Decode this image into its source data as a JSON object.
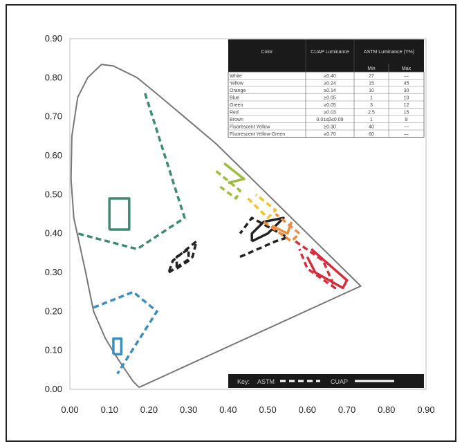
{
  "chart_data": {
    "type": "scatter",
    "title": "",
    "xlabel": "",
    "ylabel": "",
    "xlim": [
      0.0,
      0.9
    ],
    "ylim": [
      0.0,
      0.9
    ],
    "grid": false,
    "x_ticks": [
      "0.00",
      "0.10",
      "0.20",
      "0.30",
      "0.40",
      "0.50",
      "0.60",
      "0.70",
      "0.80",
      "0.90"
    ],
    "y_ticks": [
      "0.00",
      "0.10",
      "0.20",
      "0.30",
      "0.40",
      "0.50",
      "0.60",
      "0.70",
      "0.80",
      "0.90"
    ],
    "locus": [
      [
        0.175,
        0.005
      ],
      [
        0.16,
        0.02
      ],
      [
        0.14,
        0.05
      ],
      [
        0.12,
        0.08
      ],
      [
        0.09,
        0.13
      ],
      [
        0.06,
        0.2
      ],
      [
        0.04,
        0.3
      ],
      [
        0.01,
        0.44
      ],
      [
        0.003,
        0.54
      ],
      [
        0.005,
        0.65
      ],
      [
        0.02,
        0.75
      ],
      [
        0.045,
        0.8
      ],
      [
        0.08,
        0.834
      ],
      [
        0.11,
        0.83
      ],
      [
        0.17,
        0.8
      ],
      [
        0.23,
        0.75
      ],
      [
        0.3,
        0.69
      ],
      [
        0.37,
        0.63
      ],
      [
        0.44,
        0.56
      ],
      [
        0.52,
        0.48
      ],
      [
        0.6,
        0.4
      ],
      [
        0.66,
        0.34
      ],
      [
        0.735,
        0.265
      ],
      [
        0.175,
        0.005
      ]
    ],
    "series": [
      {
        "color": "#3d8c6f",
        "style": "dashed",
        "points": [
          [
            0.19,
            0.76
          ],
          [
            0.29,
            0.44
          ],
          [
            0.17,
            0.36
          ],
          [
            0.02,
            0.4
          ]
        ]
      },
      {
        "color": "#3d8c6f",
        "style": "solid",
        "points": [
          [
            0.1,
            0.41
          ],
          [
            0.15,
            0.41
          ],
          [
            0.15,
            0.49
          ],
          [
            0.1,
            0.49
          ],
          [
            0.1,
            0.41
          ]
        ]
      },
      {
        "color": "#3a8fc0",
        "style": "dashed",
        "points": [
          [
            0.06,
            0.21
          ],
          [
            0.16,
            0.25
          ],
          [
            0.22,
            0.2
          ],
          [
            0.12,
            0.04
          ]
        ]
      },
      {
        "color": "#3a8fc0",
        "style": "solid",
        "points": [
          [
            0.11,
            0.09
          ],
          [
            0.13,
            0.09
          ],
          [
            0.13,
            0.13
          ],
          [
            0.11,
            0.13
          ],
          [
            0.11,
            0.09
          ]
        ]
      },
      {
        "color": "#222222",
        "style": "dashed",
        "points": [
          [
            0.25,
            0.3
          ],
          [
            0.31,
            0.34
          ],
          [
            0.32,
            0.38
          ],
          [
            0.26,
            0.33
          ],
          [
            0.25,
            0.3
          ]
        ]
      },
      {
        "color": "#222222",
        "style": "dashed",
        "points": [
          [
            0.27,
            0.31
          ],
          [
            0.3,
            0.33
          ],
          [
            0.3,
            0.36
          ],
          [
            0.27,
            0.34
          ],
          [
            0.27,
            0.31
          ]
        ]
      },
      {
        "color": "#222222",
        "style": "dashed",
        "points": [
          [
            0.43,
            0.34
          ],
          [
            0.52,
            0.38
          ],
          [
            0.55,
            0.39
          ],
          [
            0.46,
            0.44
          ],
          [
            0.43,
            0.4
          ]
        ]
      },
      {
        "color": "#222222",
        "style": "solid",
        "points": [
          [
            0.46,
            0.38
          ],
          [
            0.5,
            0.4
          ],
          [
            0.54,
            0.44
          ],
          [
            0.49,
            0.43
          ],
          [
            0.46,
            0.4
          ],
          [
            0.46,
            0.38
          ]
        ]
      },
      {
        "color": "#9cbd3a",
        "style": "dashed",
        "points": [
          [
            0.37,
            0.56
          ],
          [
            0.43,
            0.51
          ],
          [
            0.42,
            0.49
          ],
          [
            0.38,
            0.52
          ]
        ]
      },
      {
        "color": "#9cbd3a",
        "style": "solid",
        "points": [
          [
            0.39,
            0.58
          ],
          [
            0.44,
            0.54
          ],
          [
            0.4,
            0.53
          ]
        ]
      },
      {
        "color": "#f2c230",
        "style": "dashed",
        "points": [
          [
            0.45,
            0.49
          ],
          [
            0.5,
            0.44
          ],
          [
            0.52,
            0.46
          ],
          [
            0.47,
            0.5
          ]
        ]
      },
      {
        "color": "#f08a3c",
        "style": "dashed",
        "points": [
          [
            0.49,
            0.43
          ],
          [
            0.56,
            0.38
          ],
          [
            0.58,
            0.4
          ],
          [
            0.52,
            0.45
          ]
        ]
      },
      {
        "color": "#f08a3c",
        "style": "solid",
        "points": [
          [
            0.51,
            0.42
          ],
          [
            0.55,
            0.4
          ],
          [
            0.56,
            0.43
          ]
        ]
      },
      {
        "color": "#d82c3a",
        "style": "dashed",
        "points": [
          [
            0.57,
            0.38
          ],
          [
            0.64,
            0.33
          ],
          [
            0.67,
            0.26
          ],
          [
            0.6,
            0.31
          ],
          [
            0.58,
            0.36
          ]
        ]
      },
      {
        "color": "#d82c3a",
        "style": "solid",
        "points": [
          [
            0.61,
            0.36
          ],
          [
            0.7,
            0.28
          ],
          [
            0.69,
            0.26
          ],
          [
            0.62,
            0.3
          ],
          [
            0.6,
            0.34
          ]
        ]
      }
    ],
    "table": {
      "headers": [
        "Color",
        "CUAP Luminance",
        "ASTM Luminance (Y%)"
      ],
      "subheaders": [
        "Min",
        "Max"
      ],
      "rows": [
        [
          "White",
          "≥0.40",
          "27",
          "—"
        ],
        [
          "Yellow",
          "≥0.24",
          "15",
          "45"
        ],
        [
          "Orange",
          "≥0.14",
          "10",
          "30"
        ],
        [
          "Blue",
          "≥0.05",
          "1",
          "10"
        ],
        [
          "Green",
          "≥0.05",
          "3",
          "12"
        ],
        [
          "Red",
          "≥0.03",
          "2.5",
          "15"
        ],
        [
          "Brown",
          "0.01≤β≤0.09",
          "1",
          "9"
        ],
        [
          "Fluorescent Yellow",
          "≥0.30",
          "40",
          "—"
        ],
        [
          "Fluorescent Yellow-Green",
          "≥0.70",
          "60",
          "—"
        ]
      ]
    },
    "key": {
      "label": "Key:",
      "astm": "ASTM",
      "cuap": "CUAP"
    }
  }
}
